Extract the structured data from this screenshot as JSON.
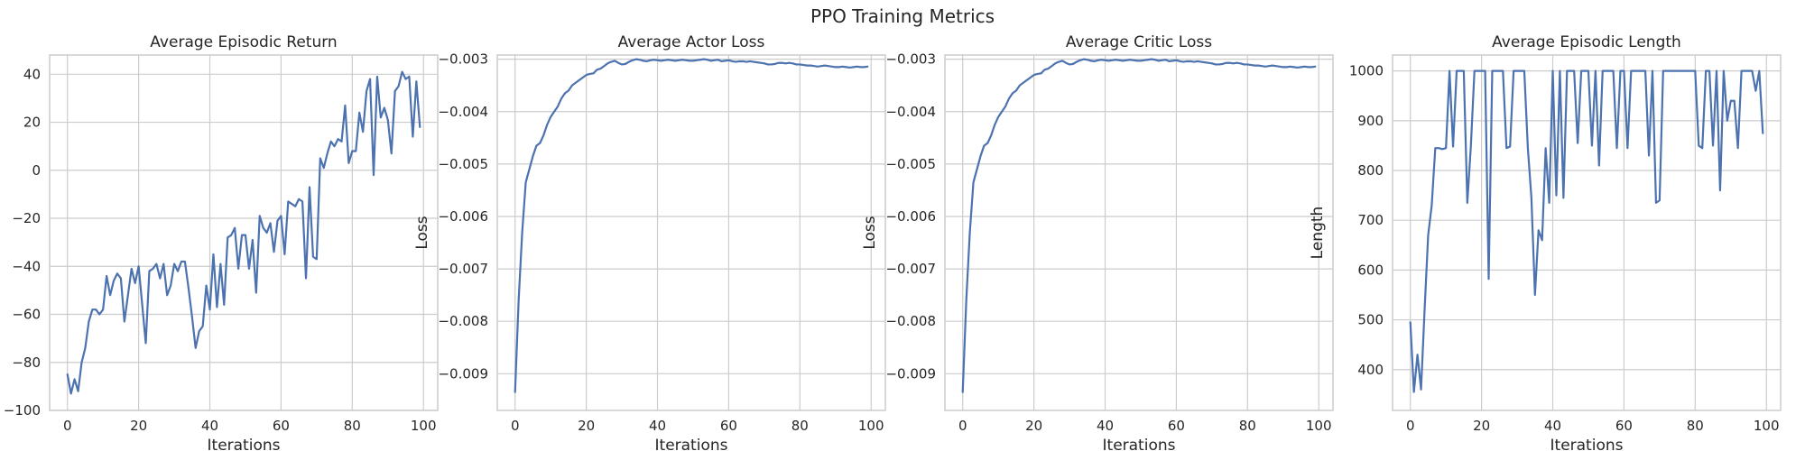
{
  "figure": {
    "suptitle": "PPO Training Metrics"
  },
  "colors": {
    "line": "#4c72b0",
    "grid": "#cccccc",
    "text": "#262626"
  },
  "chart_data": [
    {
      "type": "line",
      "title": "Average Episodic Return",
      "xlabel": "Iterations",
      "ylabel": "",
      "xlim": [
        -5,
        104
      ],
      "ylim": [
        -100,
        48
      ],
      "xticks": [
        0,
        20,
        40,
        60,
        80,
        100
      ],
      "yticks": [
        -100,
        -80,
        -60,
        -40,
        -20,
        0,
        20,
        40
      ],
      "xtick_labels": [
        "0",
        "20",
        "40",
        "60",
        "80",
        "100"
      ],
      "ytick_labels": [
        "−100",
        "−80",
        "−60",
        "−40",
        "−20",
        "0",
        "20",
        "40"
      ],
      "grid": true,
      "series": [
        {
          "values": [
            -85,
            -93,
            -87,
            -92,
            -80,
            -74,
            -63,
            -58,
            -58,
            -60,
            -58,
            -44,
            -52,
            -46,
            -43,
            -45,
            -63,
            -52,
            -41,
            -47,
            -40,
            -56,
            -72,
            -42,
            -41,
            -39,
            -45,
            -39,
            -52,
            -48,
            -39,
            -42,
            -38,
            -38,
            -49,
            -61,
            -74,
            -67,
            -65,
            -48,
            -58,
            -35,
            -57,
            -39,
            -56,
            -28,
            -27,
            -24,
            -41,
            -27,
            -27,
            -41,
            -29,
            -51,
            -19,
            -24,
            -26,
            -22,
            -34,
            -21,
            -19,
            -35,
            -13,
            -14,
            -15,
            -12,
            -13,
            -45,
            -7,
            -36,
            -37,
            5,
            1,
            7,
            12,
            10,
            13,
            12,
            27,
            3,
            8,
            8,
            24,
            16,
            33,
            38,
            -2,
            39,
            22,
            26,
            21,
            7,
            33,
            35,
            41,
            38,
            39,
            14,
            37,
            18
          ]
        }
      ]
    },
    {
      "type": "line",
      "title": "Average Actor Loss",
      "xlabel": "Iterations",
      "ylabel": "Loss",
      "xlim": [
        -5,
        104
      ],
      "ylim": [
        -0.0097,
        -0.00292
      ],
      "xticks": [
        0,
        20,
        40,
        60,
        80,
        100
      ],
      "yticks": [
        -0.009,
        -0.008,
        -0.007,
        -0.006,
        -0.005,
        -0.004,
        -0.003
      ],
      "xtick_labels": [
        "0",
        "20",
        "40",
        "60",
        "80",
        "100"
      ],
      "ytick_labels": [
        "−0.009",
        "−0.008",
        "−0.007",
        "−0.006",
        "−0.005",
        "−0.004",
        "−0.003"
      ],
      "grid": true,
      "series": [
        {
          "values": [
            -0.00935,
            -0.0076,
            -0.0063,
            -0.00535,
            -0.0051,
            -0.00485,
            -0.00465,
            -0.0046,
            -0.00445,
            -0.00425,
            -0.0041,
            -0.004,
            -0.0039,
            -0.00375,
            -0.00365,
            -0.0036,
            -0.0035,
            -0.00345,
            -0.0034,
            -0.00335,
            -0.0033,
            -0.00328,
            -0.00327,
            -0.0032,
            -0.00318,
            -0.00313,
            -0.00308,
            -0.00305,
            -0.00303,
            -0.00307,
            -0.0031,
            -0.00309,
            -0.00305,
            -0.00302,
            -0.003,
            -0.00301,
            -0.00303,
            -0.00304,
            -0.00302,
            -0.00301,
            -0.00302,
            -0.00303,
            -0.00302,
            -0.00301,
            -0.00302,
            -0.00303,
            -0.00302,
            -0.00301,
            -0.00302,
            -0.00303,
            -0.00303,
            -0.00302,
            -0.00301,
            -0.003,
            -0.00301,
            -0.00303,
            -0.00302,
            -0.00301,
            -0.00304,
            -0.00303,
            -0.00302,
            -0.00304,
            -0.00305,
            -0.00304,
            -0.00304,
            -0.00305,
            -0.00304,
            -0.00305,
            -0.00306,
            -0.00307,
            -0.00308,
            -0.0031,
            -0.0031,
            -0.00309,
            -0.00307,
            -0.00307,
            -0.00308,
            -0.00307,
            -0.00308,
            -0.0031,
            -0.0031,
            -0.00311,
            -0.00312,
            -0.00312,
            -0.00313,
            -0.00314,
            -0.00313,
            -0.00312,
            -0.00313,
            -0.00314,
            -0.00315,
            -0.00315,
            -0.00314,
            -0.00315,
            -0.00316,
            -0.00315,
            -0.00314,
            -0.00315,
            -0.00315,
            -0.00314
          ]
        }
      ]
    },
    {
      "type": "line",
      "title": "Average Critic Loss",
      "xlabel": "Iterations",
      "ylabel": "Loss",
      "xlim": [
        -5,
        104
      ],
      "ylim": [
        -0.0097,
        -0.00292
      ],
      "xticks": [
        0,
        20,
        40,
        60,
        80,
        100
      ],
      "yticks": [
        -0.009,
        -0.008,
        -0.007,
        -0.006,
        -0.005,
        -0.004,
        -0.003
      ],
      "xtick_labels": [
        "0",
        "20",
        "40",
        "60",
        "80",
        "100"
      ],
      "ytick_labels": [
        "−0.009",
        "−0.008",
        "−0.007",
        "−0.006",
        "−0.005",
        "−0.004",
        "−0.003"
      ],
      "grid": true,
      "series": [
        {
          "values": [
            -0.00935,
            -0.0076,
            -0.0063,
            -0.00535,
            -0.0051,
            -0.00485,
            -0.00465,
            -0.0046,
            -0.00445,
            -0.00425,
            -0.0041,
            -0.004,
            -0.0039,
            -0.00375,
            -0.00365,
            -0.0036,
            -0.0035,
            -0.00345,
            -0.0034,
            -0.00335,
            -0.0033,
            -0.00328,
            -0.00327,
            -0.0032,
            -0.00318,
            -0.00313,
            -0.00308,
            -0.00305,
            -0.00303,
            -0.00307,
            -0.0031,
            -0.00309,
            -0.00305,
            -0.00302,
            -0.003,
            -0.00301,
            -0.00303,
            -0.00304,
            -0.00302,
            -0.00301,
            -0.00302,
            -0.00303,
            -0.00302,
            -0.00301,
            -0.00302,
            -0.00303,
            -0.00302,
            -0.00301,
            -0.00302,
            -0.00303,
            -0.00303,
            -0.00302,
            -0.00301,
            -0.003,
            -0.00301,
            -0.00303,
            -0.00302,
            -0.00301,
            -0.00304,
            -0.00303,
            -0.00302,
            -0.00304,
            -0.00305,
            -0.00304,
            -0.00304,
            -0.00305,
            -0.00304,
            -0.00305,
            -0.00306,
            -0.00307,
            -0.00308,
            -0.0031,
            -0.0031,
            -0.00309,
            -0.00307,
            -0.00307,
            -0.00308,
            -0.00307,
            -0.00308,
            -0.0031,
            -0.0031,
            -0.00311,
            -0.00312,
            -0.00312,
            -0.00313,
            -0.00314,
            -0.00313,
            -0.00312,
            -0.00313,
            -0.00314,
            -0.00315,
            -0.00315,
            -0.00314,
            -0.00315,
            -0.00316,
            -0.00315,
            -0.00314,
            -0.00315,
            -0.00315,
            -0.00314
          ]
        }
      ]
    },
    {
      "type": "line",
      "title": "Average Episodic Length",
      "xlabel": "Iterations",
      "ylabel": "Length",
      "xlim": [
        -5,
        104
      ],
      "ylim": [
        318,
        1032
      ],
      "xticks": [
        0,
        20,
        40,
        60,
        80,
        100
      ],
      "yticks": [
        400,
        500,
        600,
        700,
        800,
        900,
        1000
      ],
      "xtick_labels": [
        "0",
        "20",
        "40",
        "60",
        "80",
        "100"
      ],
      "ytick_labels": [
        "400",
        "500",
        "600",
        "700",
        "800",
        "900",
        "1000"
      ],
      "grid": true,
      "series": [
        {
          "values": [
            495,
            355,
            430,
            360,
            520,
            670,
            730,
            845,
            845,
            843,
            845,
            1000,
            848,
            1000,
            1000,
            1000,
            735,
            850,
            1000,
            1000,
            1000,
            1000,
            582,
            1000,
            1000,
            1000,
            1000,
            845,
            848,
            1000,
            1000,
            1000,
            1000,
            845,
            745,
            550,
            680,
            660,
            845,
            735,
            1000,
            750,
            1000,
            745,
            1000,
            1000,
            1000,
            855,
            1000,
            1000,
            1000,
            850,
            1000,
            810,
            1000,
            1000,
            1000,
            1000,
            845,
            1000,
            1000,
            845,
            1000,
            1000,
            1000,
            1000,
            1000,
            830,
            1000,
            735,
            740,
            1000,
            1000,
            1000,
            1000,
            1000,
            1000,
            1000,
            1000,
            1000,
            1000,
            850,
            845,
            1000,
            1000,
            850,
            1000,
            760,
            1000,
            900,
            940,
            940,
            845,
            1000,
            1000,
            1000,
            1000,
            960,
            1000,
            875
          ]
        }
      ]
    }
  ]
}
